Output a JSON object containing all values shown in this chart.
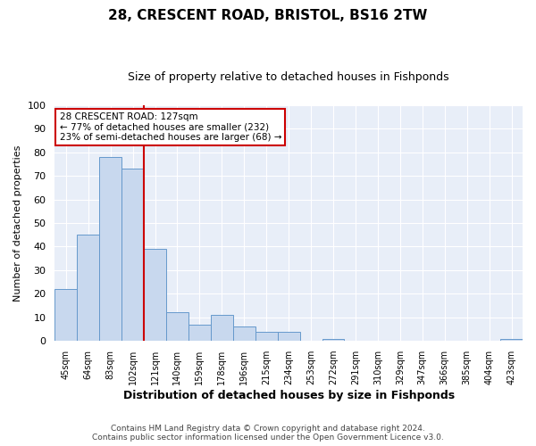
{
  "title": "28, CRESCENT ROAD, BRISTOL, BS16 2TW",
  "subtitle": "Size of property relative to detached houses in Fishponds",
  "xlabel": "Distribution of detached houses by size in Fishponds",
  "ylabel": "Number of detached properties",
  "bar_labels": [
    "45sqm",
    "64sqm",
    "83sqm",
    "102sqm",
    "121sqm",
    "140sqm",
    "159sqm",
    "178sqm",
    "196sqm",
    "215sqm",
    "234sqm",
    "253sqm",
    "272sqm",
    "291sqm",
    "310sqm",
    "329sqm",
    "347sqm",
    "366sqm",
    "385sqm",
    "404sqm",
    "423sqm"
  ],
  "bar_values": [
    22,
    45,
    78,
    73,
    39,
    12,
    7,
    11,
    6,
    4,
    4,
    0,
    1,
    0,
    0,
    0,
    0,
    0,
    0,
    0,
    1
  ],
  "bar_color": "#c8d8ee",
  "bar_edge_color": "#6699cc",
  "vline_x": 4.0,
  "vline_color": "#cc0000",
  "ylim": [
    0,
    100
  ],
  "yticks": [
    0,
    10,
    20,
    30,
    40,
    50,
    60,
    70,
    80,
    90,
    100
  ],
  "annotation_title": "28 CRESCENT ROAD: 127sqm",
  "annotation_line1": "← 77% of detached houses are smaller (232)",
  "annotation_line2": "23% of semi-detached houses are larger (68) →",
  "footer_line1": "Contains HM Land Registry data © Crown copyright and database right 2024.",
  "footer_line2": "Contains public sector information licensed under the Open Government Licence v3.0.",
  "bg_color": "#ffffff",
  "plot_bg_color": "#e8eef8",
  "grid_color": "#ffffff",
  "title_fontsize": 11,
  "subtitle_fontsize": 9,
  "ylabel_fontsize": 8,
  "xlabel_fontsize": 9
}
